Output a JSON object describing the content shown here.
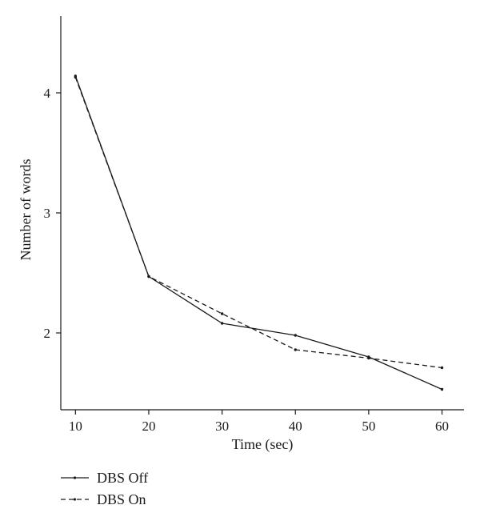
{
  "chart_data": {
    "type": "line",
    "title": "",
    "xlabel": "Time (sec)",
    "ylabel": "Number of words",
    "x": [
      10,
      20,
      30,
      40,
      50,
      60
    ],
    "xlim": [
      8,
      63
    ],
    "ylim": [
      1.36,
      4.64
    ],
    "xticks": [
      10,
      20,
      30,
      40,
      50,
      60
    ],
    "yticks": [
      2,
      3,
      4
    ],
    "grid": false,
    "legend": "bottom-left",
    "series": [
      {
        "name": "DBS Off",
        "style": "solid",
        "values": [
          4.14,
          2.47,
          2.08,
          1.98,
          1.8,
          1.53
        ]
      },
      {
        "name": "DBS On",
        "style": "dashed",
        "values": [
          4.13,
          2.47,
          2.16,
          1.86,
          1.79,
          1.71
        ]
      }
    ],
    "colors": {
      "line": "#1a1a1a",
      "axis": "#1a1a1a"
    }
  }
}
